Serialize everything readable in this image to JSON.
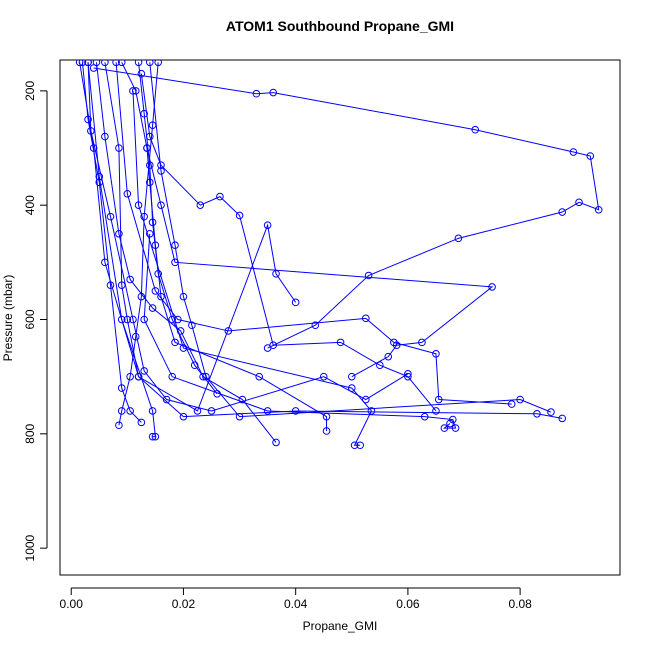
{
  "chart_data": {
    "type": "line",
    "title": "ATOM1 Southbound Propane_GMI",
    "x_label": "Propane_GMI",
    "y_label": "Pressure (mbar)",
    "color": "#0000ff",
    "markers": "open-circle",
    "grid": false,
    "xlim": [
      -0.002,
      0.0978
    ],
    "ylim": [
      1047,
      146
    ],
    "xticks": [
      {
        "value": 0,
        "label": "0.00"
      },
      {
        "value": 0.02,
        "label": "0.02"
      },
      {
        "value": 0.04,
        "label": "0.04"
      },
      {
        "value": 0.06,
        "label": "0.06"
      },
      {
        "value": 0.08,
        "label": "0.08"
      }
    ],
    "yticks": [
      200,
      400,
      600,
      800,
      1000
    ],
    "series": [
      {
        "x": [
          0.004,
          0.033,
          0.036,
          0.072,
          0.0895,
          0.0925,
          0.094,
          0.0905,
          0.0875,
          0.069,
          0.053,
          0.0435,
          0.035
        ],
        "y": [
          160,
          205,
          203,
          268,
          307,
          314,
          408,
          395,
          412,
          458,
          523,
          610,
          650
        ]
      },
      {
        "x": [
          0.0135,
          0.016,
          0.0185,
          0.075,
          0.0625,
          0.058,
          0.0565,
          0.05
        ],
        "y": [
          300,
          400,
          500,
          543,
          640,
          645,
          665,
          700
        ]
      },
      {
        "x": [
          0.014,
          0.013,
          0.018,
          0.035,
          0.063,
          0.068,
          0.0685,
          0.0665,
          0.0675
        ],
        "y": [
          450,
          600,
          700,
          760,
          770,
          775,
          790,
          790,
          782
        ]
      },
      {
        "x": [
          0.011,
          0.012,
          0.02,
          0.05,
          0.0535,
          0.0505,
          0.0515
        ],
        "y": [
          200,
          400,
          650,
          720,
          760,
          820,
          820
        ]
      },
      {
        "x": [
          0.003,
          0.005,
          0.009,
          0.0145,
          0.015,
          0.0145
        ],
        "y": [
          150,
          350,
          600,
          760,
          805,
          805
        ]
      },
      {
        "x": [
          0.0015,
          0.004,
          0.006,
          0.012,
          0.0225,
          0.035,
          0.0365,
          0.04
        ],
        "y": [
          150,
          300,
          500,
          700,
          760,
          435,
          520,
          570
        ]
      },
      {
        "x": [
          0.008,
          0.01,
          0.015,
          0.019,
          0.028,
          0.0525,
          0.0575,
          0.065,
          0.0655,
          0.0785
        ],
        "y": [
          150,
          380,
          550,
          600,
          620,
          598,
          640,
          660,
          740,
          748
        ]
      },
      {
        "x": [
          0.006,
          0.0085,
          0.009,
          0.01,
          0.012,
          0.02,
          0.04,
          0.083,
          0.0875
        ],
        "y": [
          150,
          300,
          540,
          600,
          700,
          770,
          760,
          765,
          773
        ]
      },
      {
        "x": [
          0.0125,
          0.014,
          0.016,
          0.023,
          0.0265,
          0.03,
          0.036,
          0.048,
          0.055,
          0.06,
          0.065
        ],
        "y": [
          170,
          280,
          330,
          400,
          385,
          418,
          645,
          640,
          680,
          700,
          760
        ]
      },
      {
        "x": [
          0.002,
          0.003,
          0.005,
          0.007,
          0.009,
          0.0105,
          0.0125
        ],
        "y": [
          150,
          250,
          360,
          540,
          720,
          760,
          780
        ]
      },
      {
        "x": [
          0.012,
          0.013,
          0.014,
          0.0145,
          0.0155,
          0.018,
          0.022,
          0.026
        ],
        "y": [
          150,
          240,
          330,
          430,
          520,
          600,
          680,
          730
        ]
      },
      {
        "x": [
          0.009,
          0.0115,
          0.0135,
          0.014,
          0.015,
          0.016,
          0.0185,
          0.0335,
          0.0455,
          0.0455
        ],
        "y": [
          150,
          200,
          300,
          360,
          470,
          560,
          640,
          700,
          770,
          795
        ]
      },
      {
        "x": [
          0.003,
          0.0035,
          0.007,
          0.011,
          0.013,
          0.017,
          0.025,
          0.045,
          0.0525,
          0.06
        ],
        "y": [
          150,
          270,
          420,
          600,
          690,
          740,
          760,
          700,
          740,
          695
        ]
      },
      {
        "x": [
          0.0155,
          0.0145,
          0.013,
          0.0125,
          0.0115,
          0.0105,
          0.009,
          0.0085
        ],
        "y": [
          150,
          260,
          420,
          560,
          630,
          700,
          760,
          785
        ]
      },
      {
        "x": [
          0.0045,
          0.006,
          0.0085,
          0.0105,
          0.0145,
          0.0195,
          0.0235,
          0.0305,
          0.0365
        ],
        "y": [
          150,
          280,
          450,
          530,
          580,
          620,
          700,
          740,
          815
        ]
      },
      {
        "x": [
          0.014,
          0.016,
          0.0185,
          0.02,
          0.0215,
          0.024,
          0.03,
          0.08,
          0.0855
        ],
        "y": [
          150,
          340,
          470,
          560,
          610,
          700,
          770,
          740,
          762
        ]
      }
    ]
  }
}
